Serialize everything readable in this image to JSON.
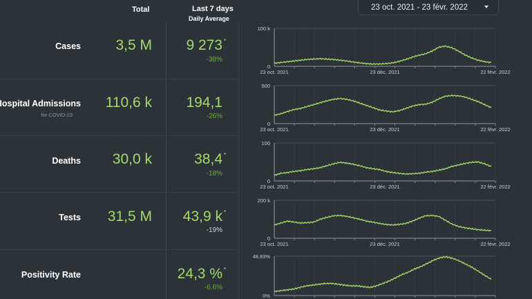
{
  "header": {
    "total": "Total",
    "last7": "Last 7 days",
    "daily_avg": "Daily Average"
  },
  "date_filter": {
    "value": "23 oct. 2021 - 23 févr. 2022"
  },
  "rows": [
    {
      "label": "Cases",
      "sublabel": "",
      "total": "3,5 M",
      "avg": "9 273",
      "star": "*",
      "pct": "-38%"
    },
    {
      "label": "Hospital Admissions",
      "sublabel": "for COVID-19",
      "total": "110,6 k",
      "avg": "194,1",
      "star": "",
      "pct": "-26%"
    },
    {
      "label": "Deaths",
      "sublabel": "",
      "total": "30,0 k",
      "avg": "38,4",
      "star": "*",
      "pct": "-18%"
    },
    {
      "label": "Tests",
      "sublabel": "",
      "total": "31,5 M",
      "avg": "43,9 k",
      "star": "*",
      "pct": "-19%"
    },
    {
      "label": "Positivity Rate",
      "sublabel": "",
      "total": "",
      "avg": "24,3 %",
      "star": "*",
      "pct": "-6.6%"
    }
  ],
  "colors": {
    "accent": "#a6d96a",
    "negative_pct": "#6cae3e",
    "background": "#2c3338"
  },
  "chart_data": [
    {
      "type": "line",
      "name": "cases",
      "ylim": [
        0,
        100000
      ],
      "yticks": [
        "0",
        "100 k"
      ],
      "xticks": [
        "23 oct. 2021",
        "23 déc. 2021",
        "22 févr. 2022"
      ],
      "values": [
        8000,
        10000,
        12000,
        14000,
        16000,
        18000,
        19000,
        20000,
        19000,
        18000,
        16000,
        14000,
        11000,
        9000,
        7000,
        6000,
        6000,
        7000,
        9000,
        13000,
        18000,
        24000,
        29000,
        33000,
        40000,
        50000,
        53000,
        49000,
        40000,
        30000,
        22000,
        16000,
        12000,
        10000
      ]
    },
    {
      "type": "line",
      "name": "hospital-admissions",
      "ylim": [
        0,
        500
      ],
      "yticks": [
        "0",
        "500"
      ],
      "xticks": [
        "23 oct. 2021",
        "23 déc. 2021",
        "22 févr. 2022"
      ],
      "values": [
        110,
        130,
        160,
        185,
        200,
        225,
        250,
        275,
        300,
        320,
        330,
        320,
        300,
        270,
        240,
        210,
        180,
        165,
        155,
        170,
        200,
        230,
        250,
        255,
        280,
        325,
        360,
        370,
        365,
        350,
        320,
        290,
        250,
        210
      ]
    },
    {
      "type": "line",
      "name": "deaths",
      "ylim": [
        0,
        100
      ],
      "yticks": [
        "0",
        "100"
      ],
      "xticks": [
        "23 oct. 2021",
        "23 déc. 2021",
        "22 févr. 2022"
      ],
      "values": [
        15,
        20,
        22,
        25,
        27,
        30,
        32,
        35,
        40,
        45,
        49,
        47,
        44,
        40,
        35,
        32,
        30,
        25,
        22,
        20,
        18,
        19,
        20,
        23,
        25,
        28,
        32,
        38,
        42,
        46,
        49,
        50,
        45,
        38
      ]
    },
    {
      "type": "line",
      "name": "tests",
      "ylim": [
        0,
        200000
      ],
      "yticks": [
        "0",
        "200 k"
      ],
      "xticks": [
        "23 oct. 2021",
        "23 déc. 2021",
        "22 févr. 2022"
      ],
      "values": [
        70000,
        80000,
        90000,
        85000,
        80000,
        82000,
        85000,
        100000,
        110000,
        118000,
        120000,
        115000,
        108000,
        100000,
        90000,
        85000,
        78000,
        72000,
        70000,
        73000,
        78000,
        90000,
        105000,
        118000,
        120000,
        115000,
        95000,
        75000,
        62000,
        55000,
        50000,
        45000,
        42000,
        40000
      ]
    },
    {
      "type": "line",
      "name": "positivity-rate",
      "ylim": [
        0,
        48.83
      ],
      "yticks": [
        "0%",
        "48,83%"
      ],
      "xticks": [],
      "values": [
        5,
        6,
        7,
        8,
        10,
        12,
        13,
        14,
        15,
        15,
        14,
        13,
        12,
        12,
        11,
        10,
        12,
        15,
        18,
        22,
        26,
        29,
        33,
        36,
        40,
        44,
        47,
        48,
        46,
        43,
        39,
        35,
        30,
        25,
        20
      ]
    }
  ]
}
